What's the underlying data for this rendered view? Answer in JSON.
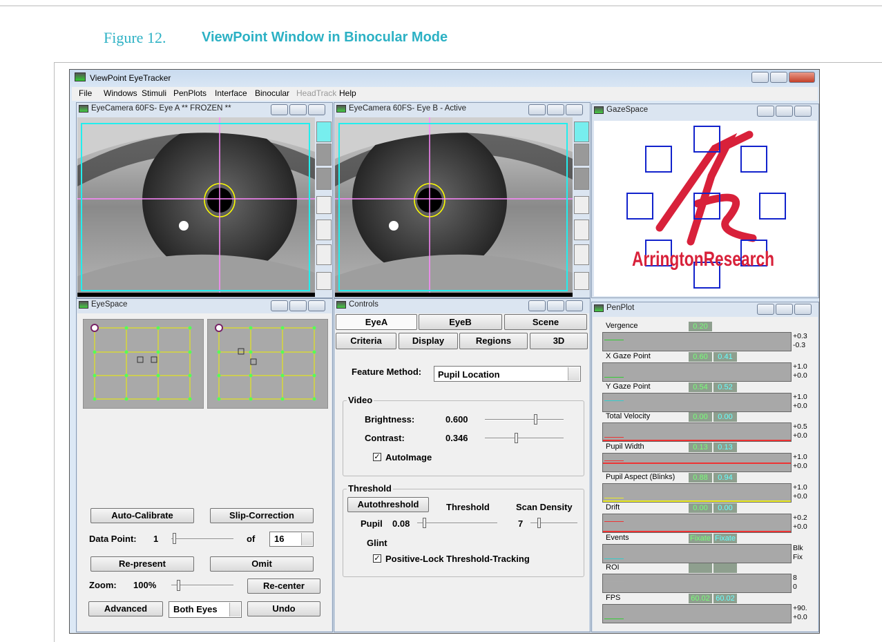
{
  "figure": {
    "number": "Figure 12.",
    "title": "ViewPoint Window in Binocular Mode"
  },
  "app": {
    "title": "ViewPoint EyeTracker",
    "menu": [
      "File",
      "Windows",
      "Stimuli",
      "PenPlots",
      "Interface",
      "Binocular",
      "HeadTrack",
      "Help"
    ]
  },
  "eye_a": {
    "title": "EyeCamera 60FS- Eye A ** FROZEN **"
  },
  "eye_b": {
    "title": "EyeCamera 60FS- Eye B - Active"
  },
  "gaze_space": {
    "title": "GazeSpace",
    "logo": "ArringtonResearch"
  },
  "eye_space": {
    "title": "EyeSpace",
    "auto_calibrate": "Auto-Calibrate",
    "slip_correction": "Slip-Correction",
    "data_point_label": "Data Point:",
    "data_point": "1",
    "of": "of",
    "count": "16",
    "re_present": "Re-present",
    "omit": "Omit",
    "zoom_label": "Zoom:",
    "zoom": "100%",
    "re_center": "Re-center",
    "advanced": "Advanced",
    "eyes": "Both Eyes",
    "undo": "Undo"
  },
  "controls": {
    "title": "Controls",
    "tabs_row1": [
      "EyeA",
      "EyeB",
      "Scene"
    ],
    "tabs_row2": [
      "Criteria",
      "Display",
      "Regions",
      "3D"
    ],
    "feature_label": "Feature Method:",
    "feature_value": "Pupil Location",
    "video": {
      "title": "Video",
      "brightness_label": "Brightness:",
      "brightness": "0.600",
      "contrast_label": "Contrast:",
      "contrast": "0.346",
      "auto_image": "AutoImage"
    },
    "threshold": {
      "title": "Threshold",
      "autothreshold": "Autothreshold",
      "threshold_label": "Threshold",
      "scan_density_label": "Scan Density",
      "pupil_label": "Pupil",
      "pupil": "0.08",
      "scan_density": "7",
      "glint": "Glint",
      "positive_lock": "Positive-Lock Threshold-Tracking"
    }
  },
  "pen_plot": {
    "title": "PenPlot",
    "rows": [
      {
        "label": "Vergence",
        "values": [
          "0.20"
        ],
        "scale": [
          "+0.3",
          "-0.3"
        ]
      },
      {
        "label": "X Gaze Point",
        "values": [
          "0.60",
          "0.41"
        ],
        "scale": [
          "+1.0",
          "+0.0"
        ]
      },
      {
        "label": "Y Gaze Point",
        "values": [
          "0.54",
          "0.52"
        ],
        "scale": [
          "+1.0",
          "+0.0"
        ]
      },
      {
        "label": "Total Velocity",
        "values": [
          "0.00",
          "0.00"
        ],
        "scale": [
          "+0.5",
          "+0.0"
        ]
      },
      {
        "label": "Pupil Width",
        "values": [
          "0.13",
          "0.13"
        ],
        "scale": [
          "+1.0",
          "+0.0"
        ]
      },
      {
        "label": "Pupil Aspect (Blinks)",
        "values": [
          "0.88",
          "0.94"
        ],
        "scale": [
          "+1.0",
          "+0.0"
        ]
      },
      {
        "label": "Drift",
        "values": [
          "0.00",
          "0.00"
        ],
        "scale": [
          "+0.2",
          "+0.0"
        ]
      },
      {
        "label": "Events",
        "values": [
          "Fixate",
          "Fixate"
        ],
        "scale": [
          "Blk",
          "Fix"
        ]
      },
      {
        "label": "ROI",
        "values": [],
        "scale": [
          "8",
          "0"
        ]
      },
      {
        "label": "FPS",
        "values": [
          "60.02",
          "60.02"
        ],
        "scale": [
          "+90.",
          "+0.0"
        ]
      }
    ]
  }
}
